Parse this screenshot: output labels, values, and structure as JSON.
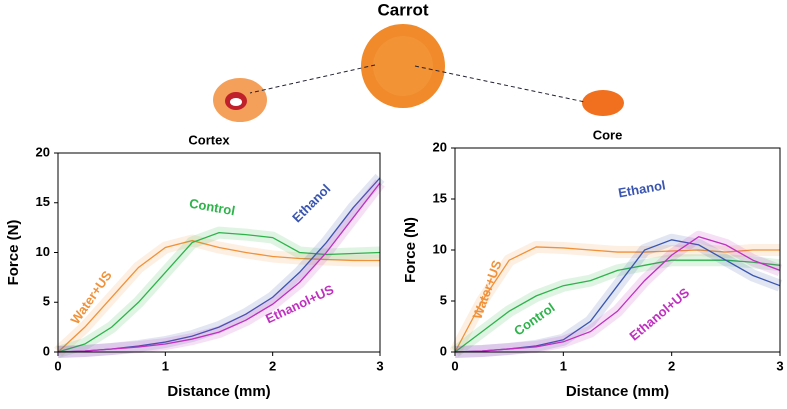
{
  "title": "Carrot",
  "chart_data": [
    {
      "type": "line",
      "title": "Cortex",
      "x_label": "Distance (mm)",
      "y_label": "Force (N)",
      "x": [
        0,
        0.25,
        0.5,
        0.75,
        1,
        1.25,
        1.5,
        1.75,
        2,
        2.25,
        2.5,
        2.75,
        3
      ],
      "xlim": [
        0,
        3
      ],
      "xticks": [
        0,
        1,
        2,
        3
      ],
      "ylim": [
        0,
        20
      ],
      "yticks": [
        0,
        5,
        10,
        15,
        20
      ],
      "series": [
        {
          "name": "Water+US",
          "color": "#f0923a",
          "values": [
            0,
            2.5,
            5.5,
            8.5,
            10.5,
            11.2,
            10.5,
            10,
            9.6,
            9.4,
            9.3,
            9.2,
            9.2
          ]
        },
        {
          "name": "Control",
          "color": "#2db34a",
          "values": [
            0,
            0.8,
            2.5,
            5,
            8,
            11,
            12,
            11.8,
            11.5,
            10,
            9.8,
            9.9,
            10
          ]
        },
        {
          "name": "Ethanol",
          "color": "#3a55b0",
          "values": [
            0,
            0.1,
            0.3,
            0.6,
            1,
            1.6,
            2.5,
            3.8,
            5.5,
            8,
            11,
            14.5,
            17.5
          ]
        },
        {
          "name": "Ethanol+US",
          "color": "#c030c0",
          "values": [
            0,
            0.1,
            0.3,
            0.5,
            0.8,
            1.3,
            2,
            3.2,
            4.8,
            7,
            10,
            13.5,
            17
          ]
        }
      ]
    },
    {
      "type": "line",
      "title": "Core",
      "x_label": "Distance (mm)",
      "y_label": "Force (N)",
      "x": [
        0,
        0.25,
        0.5,
        0.75,
        1,
        1.25,
        1.5,
        1.75,
        2,
        2.25,
        2.5,
        2.75,
        3
      ],
      "xlim": [
        0,
        3
      ],
      "xticks": [
        0,
        1,
        2,
        3
      ],
      "ylim": [
        0,
        20
      ],
      "yticks": [
        0,
        5,
        10,
        15,
        20
      ],
      "series": [
        {
          "name": "Water+US",
          "color": "#f0923a",
          "values": [
            0,
            5,
            9,
            10.3,
            10.2,
            10,
            9.8,
            9.8,
            9.9,
            10,
            9.8,
            10,
            10
          ]
        },
        {
          "name": "Control",
          "color": "#2db34a",
          "values": [
            0,
            2,
            4,
            5.5,
            6.5,
            7,
            8,
            8.5,
            9,
            9,
            9,
            8.8,
            8.5
          ]
        },
        {
          "name": "Ethanol",
          "color": "#3a55b0",
          "values": [
            0,
            0.1,
            0.3,
            0.6,
            1.2,
            3,
            6.5,
            10,
            11,
            10.5,
            9,
            7.5,
            6.5
          ]
        },
        {
          "name": "Ethanol+US",
          "color": "#c030c0",
          "values": [
            0,
            0.1,
            0.3,
            0.5,
            1,
            2,
            4,
            7,
            9.5,
            11.3,
            10.5,
            9,
            8
          ]
        }
      ]
    }
  ]
}
